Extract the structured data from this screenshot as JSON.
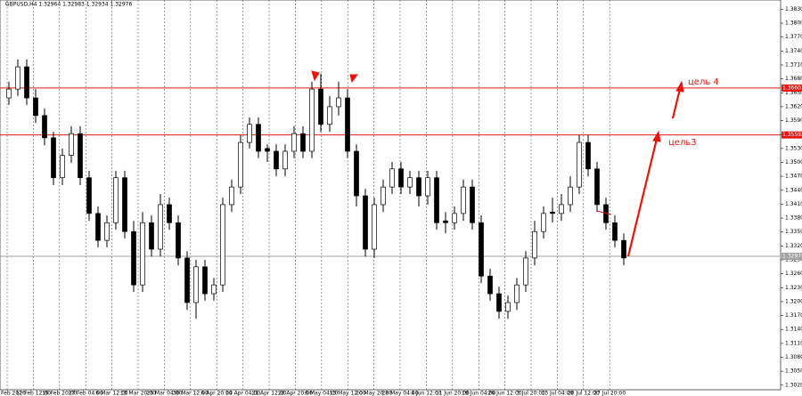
{
  "chart_data": {
    "type": "candlestick",
    "title": "GBPUSD,H4  1.32964 1.32983 1.32934 1.32976",
    "ylim": [
      1.301,
      1.385
    ],
    "yticks": [
      {
        "value": 1.302,
        "label": "1.30200"
      },
      {
        "value": 1.305,
        "label": "1.30500"
      },
      {
        "value": 1.308,
        "label": "1.30800"
      },
      {
        "value": 1.311,
        "label": "1.31100"
      },
      {
        "value": 1.314,
        "label": "1.31400"
      },
      {
        "value": 1.317,
        "label": "1.31700"
      },
      {
        "value": 1.32,
        "label": "1.32000"
      },
      {
        "value": 1.323,
        "label": "1.32300"
      },
      {
        "value": 1.326,
        "label": "1.32600"
      },
      {
        "value": 1.329,
        "label": "1.32900"
      },
      {
        "value": 1.332,
        "label": "1.33200"
      },
      {
        "value": 1.335,
        "label": "1.33500"
      },
      {
        "value": 1.338,
        "label": "1.33800"
      },
      {
        "value": 1.341,
        "label": "1.34100"
      },
      {
        "value": 1.344,
        "label": "1.34400"
      },
      {
        "value": 1.347,
        "label": "1.34700"
      },
      {
        "value": 1.35,
        "label": "1.35000"
      },
      {
        "value": 1.353,
        "label": "1.35300"
      },
      {
        "value": 1.356,
        "label": "1.35600"
      },
      {
        "value": 1.359,
        "label": "1.35900"
      },
      {
        "value": 1.362,
        "label": "1.36200"
      },
      {
        "value": 1.365,
        "label": "1.36500"
      },
      {
        "value": 1.368,
        "label": "1.36800"
      },
      {
        "value": 1.371,
        "label": "1.37100"
      },
      {
        "value": 1.374,
        "label": "1.37400"
      },
      {
        "value": 1.377,
        "label": "1.37700"
      },
      {
        "value": 1.38,
        "label": "1.38000"
      },
      {
        "value": 1.383,
        "label": "1.38300"
      }
    ],
    "xlabels": [
      "Feb 2026",
      "12 Feb 12:00",
      "19 Feb 20:00",
      "27 Feb 04:00",
      "6 Mar 12:00",
      "13 Mar 20:00",
      "23 Mar 04:00",
      "30 Mar 12:00",
      "6 Apr 20:00",
      "14 Apr 04:00",
      "21 Apr 12:00",
      "28 Apr 20:00",
      "6 May 04:00",
      "13 May 12:00",
      "20 May 20:00",
      "28 May 04:00",
      "4 Jun 12:00",
      "11 Jun 20:00",
      "19 Jun 04:00",
      "26 Jun 12:00",
      "3 Jul 20:00",
      "13 Jul 04:00",
      "20 Jul 12:00",
      "27 Jul 20:00"
    ],
    "ohlc": [
      [
        1.3639,
        1.3674,
        1.3624,
        1.3658
      ],
      [
        1.3658,
        1.3722,
        1.3643,
        1.3706
      ],
      [
        1.3706,
        1.3722,
        1.3624,
        1.3639
      ],
      [
        1.3639,
        1.3658,
        1.3585,
        1.3601
      ],
      [
        1.3601,
        1.3616,
        1.3537,
        1.3553
      ],
      [
        1.3553,
        1.3566,
        1.3451,
        1.3467
      ],
      [
        1.3467,
        1.353,
        1.3451,
        1.3515
      ],
      [
        1.3515,
        1.3578,
        1.3499,
        1.3562
      ],
      [
        1.3562,
        1.3578,
        1.3451,
        1.3467
      ],
      [
        1.3467,
        1.3482,
        1.3374,
        1.339
      ],
      [
        1.339,
        1.3405,
        1.3317,
        1.3332
      ],
      [
        1.3332,
        1.3386,
        1.3317,
        1.337
      ],
      [
        1.337,
        1.3482,
        1.3355,
        1.3467
      ],
      [
        1.3467,
        1.3482,
        1.3336,
        1.3351
      ],
      [
        1.3351,
        1.3374,
        1.3221,
        1.3236
      ],
      [
        1.3236,
        1.3393,
        1.3221,
        1.337
      ],
      [
        1.337,
        1.3386,
        1.3297,
        1.3313
      ],
      [
        1.3313,
        1.3432,
        1.3297,
        1.3409
      ],
      [
        1.3409,
        1.3424,
        1.3355,
        1.337
      ],
      [
        1.337,
        1.3386,
        1.3278,
        1.3294
      ],
      [
        1.3294,
        1.3309,
        1.3182,
        1.3198
      ],
      [
        1.3198,
        1.329,
        1.3163,
        1.3275
      ],
      [
        1.3275,
        1.329,
        1.3202,
        1.3217
      ],
      [
        1.3217,
        1.3251,
        1.3202,
        1.3236
      ],
      [
        1.3236,
        1.3424,
        1.3221,
        1.3409
      ],
      [
        1.3409,
        1.3463,
        1.3393,
        1.3447
      ],
      [
        1.3447,
        1.3559,
        1.3432,
        1.3543
      ],
      [
        1.3543,
        1.3597,
        1.353,
        1.3582
      ],
      [
        1.3582,
        1.3597,
        1.3509,
        1.3524
      ],
      [
        1.353,
        1.3539,
        1.3501,
        1.3524
      ],
      [
        1.3524,
        1.3539,
        1.347,
        1.3486
      ],
      [
        1.3486,
        1.3539,
        1.347,
        1.3524
      ],
      [
        1.3524,
        1.3578,
        1.3509,
        1.3562
      ],
      [
        1.3562,
        1.3578,
        1.3509,
        1.3524
      ],
      [
        1.3524,
        1.3674,
        1.3509,
        1.3658
      ],
      [
        1.3658,
        1.3691,
        1.3566,
        1.3582
      ],
      [
        1.3582,
        1.3643,
        1.3566,
        1.362
      ],
      [
        1.362,
        1.3674,
        1.3601,
        1.3639
      ],
      [
        1.3639,
        1.3658,
        1.3509,
        1.3524
      ],
      [
        1.3524,
        1.3539,
        1.3405,
        1.3428
      ],
      [
        1.3428,
        1.3443,
        1.3297,
        1.3313
      ],
      [
        1.3313,
        1.3424,
        1.3294,
        1.3409
      ],
      [
        1.3409,
        1.3463,
        1.3393,
        1.3447
      ],
      [
        1.3447,
        1.3501,
        1.3432,
        1.3486
      ],
      [
        1.3486,
        1.3501,
        1.3432,
        1.3447
      ],
      [
        1.3447,
        1.3482,
        1.3432,
        1.3467
      ],
      [
        1.3467,
        1.3482,
        1.3405,
        1.3428
      ],
      [
        1.3428,
        1.3482,
        1.3409,
        1.3467
      ],
      [
        1.3467,
        1.3482,
        1.3355,
        1.337
      ],
      [
        1.3374,
        1.3393,
        1.3347,
        1.337
      ],
      [
        1.337,
        1.3405,
        1.3355,
        1.339
      ],
      [
        1.339,
        1.3463,
        1.3374,
        1.3447
      ],
      [
        1.3447,
        1.3463,
        1.3355,
        1.337
      ],
      [
        1.337,
        1.3386,
        1.324,
        1.3255
      ],
      [
        1.3255,
        1.3271,
        1.3202,
        1.3217
      ],
      [
        1.3217,
        1.3232,
        1.3163,
        1.3179
      ],
      [
        1.3179,
        1.3213,
        1.3163,
        1.3198
      ],
      [
        1.3198,
        1.3251,
        1.3182,
        1.3236
      ],
      [
        1.3236,
        1.3309,
        1.3221,
        1.3294
      ],
      [
        1.3294,
        1.3374,
        1.3278,
        1.3351
      ],
      [
        1.3351,
        1.3405,
        1.3336,
        1.339
      ],
      [
        1.3393,
        1.3424,
        1.337,
        1.339
      ],
      [
        1.339,
        1.3432,
        1.3374,
        1.3409
      ],
      [
        1.3409,
        1.347,
        1.3393,
        1.3447
      ],
      [
        1.3447,
        1.3559,
        1.3432,
        1.3543
      ],
      [
        1.3543,
        1.3559,
        1.347,
        1.3486
      ],
      [
        1.3486,
        1.3501,
        1.3393,
        1.3409
      ],
      [
        1.3409,
        1.3424,
        1.3355,
        1.337
      ],
      [
        1.337,
        1.3386,
        1.3317,
        1.3332
      ],
      [
        1.3332,
        1.3347,
        1.3278,
        1.3294
      ]
    ],
    "levels": [
      {
        "value": 1.36603,
        "label": "1.36603",
        "color": "#e8140c"
      },
      {
        "value": 1.35592,
        "label": "1.35592",
        "color": "#e8140c"
      }
    ],
    "current": {
      "value": 1.32976,
      "label": "1.32976",
      "color": "#a0a0a0"
    },
    "annotations": [
      "цель 4",
      "цель3"
    ]
  }
}
